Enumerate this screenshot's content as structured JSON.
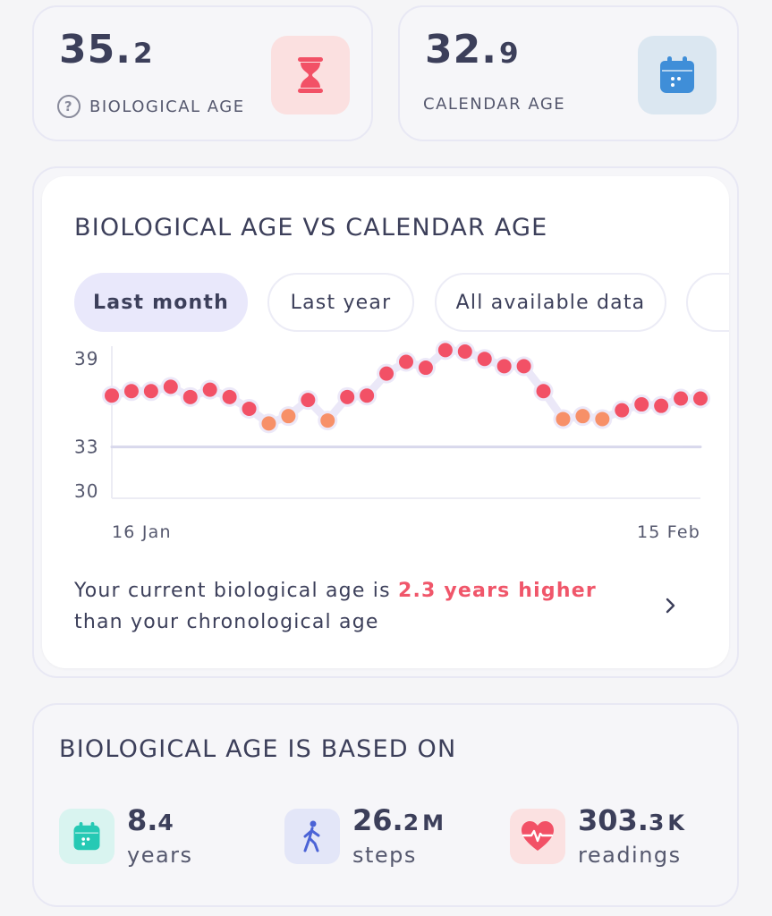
{
  "bio_card": {
    "value_int": "35.",
    "value_dec": "2",
    "label": "BIOLOGICAL AGE",
    "help_icon": "question-circle-icon",
    "icon": "hourglass-icon"
  },
  "cal_card": {
    "value_int": "32.",
    "value_dec": "9",
    "label": "CALENDAR AGE",
    "icon": "calendar-icon"
  },
  "chart_card": {
    "title": "BIOLOGICAL AGE VS CALENDAR AGE",
    "tabs": [
      {
        "label": "Last month",
        "active": true
      },
      {
        "label": "Last year",
        "active": false
      },
      {
        "label": "All available data",
        "active": false
      }
    ],
    "insight_prefix": "Your current biological age is ",
    "insight_highlight": "2.3 years higher",
    "insight_suffix": "than your chronological age",
    "chevron_icon": "chevron-right-icon"
  },
  "chart_data": {
    "type": "scatter",
    "title": "BIOLOGICAL AGE VS CALENDAR AGE",
    "xlabel": "",
    "ylabel": "",
    "x_tick_labels": [
      "16 Jan",
      "15 Feb"
    ],
    "y_ticks": [
      39,
      33,
      30
    ],
    "ylim": [
      29.5,
      39.5
    ],
    "series": [
      {
        "values": [
          36.5,
          36.8,
          36.8,
          37.1,
          36.4,
          36.9,
          36.4,
          35.6,
          34.6,
          35.1,
          36.2,
          34.8,
          36.4,
          36.5,
          38.0,
          38.8,
          38.4,
          39.6,
          39.5,
          39.0,
          38.5,
          38.5,
          36.8,
          34.9,
          35.1,
          34.9,
          35.5,
          35.9,
          35.8,
          36.3,
          36.3
        ],
        "higher_color": "#f25166",
        "lower_color": "#f79068"
      },
      {
        "values": [
          33.0,
          33.0,
          33.0,
          33.0,
          33.0,
          33.0,
          33.0,
          33.0,
          33.0,
          33.0,
          33.0,
          33.0,
          33.0,
          33.0,
          33.0,
          33.0,
          33.0,
          33.0,
          33.0,
          33.0,
          33.0,
          33.0,
          33.0,
          33.0,
          33.0,
          33.0,
          33.0,
          33.0,
          33.0,
          33.0,
          33.0
        ],
        "color": "#d8d8ec"
      }
    ],
    "grid": false
  },
  "based_on": {
    "title": "BIOLOGICAL AGE IS BASED ON",
    "metrics": [
      {
        "value_int": "8.",
        "value_dec": "4",
        "unit": "",
        "label": "years",
        "icon": "calendar-icon"
      },
      {
        "value_int": "26.",
        "value_dec": "2",
        "unit": "M",
        "label": "steps",
        "icon": "walking-person-icon"
      },
      {
        "value_int": "303.",
        "value_dec": "3",
        "unit": "K",
        "label": "readings",
        "icon": "heart-pulse-icon"
      }
    ]
  },
  "colors": {
    "accent_red": "#f0566a",
    "tab_active_bg": "#e9e8fb",
    "card_border": "#e8e8f4"
  }
}
